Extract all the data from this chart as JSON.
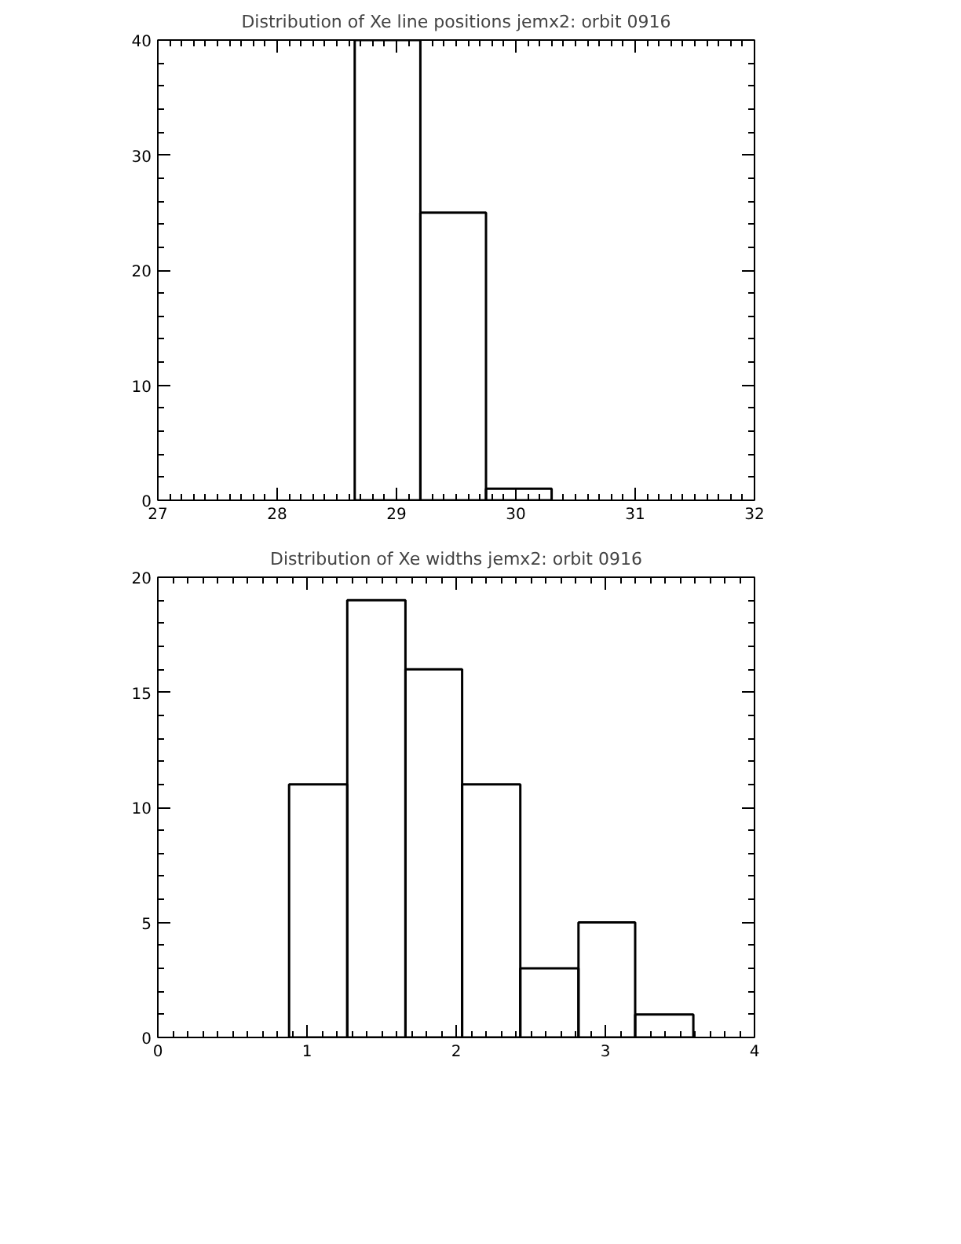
{
  "chart_data": [
    {
      "type": "histogram",
      "title": "Distribution of Xe line positions jemx2: orbit 0916",
      "bins": [
        28.65,
        29.2,
        29.75,
        30.3
      ],
      "values": [
        40,
        25,
        1
      ],
      "color": "#000000",
      "xlim": [
        27,
        32
      ],
      "xticks": [
        27,
        28,
        29,
        30,
        31,
        32
      ],
      "ylim": [
        0,
        40
      ],
      "yticks": [
        0,
        10,
        20,
        30,
        40
      ],
      "grid": false
    },
    {
      "type": "histogram",
      "title": "Distribution of Xe widths jemx2: orbit 0916",
      "bins": [
        0.88,
        1.27,
        1.66,
        2.04,
        2.43,
        2.82,
        3.2,
        3.59
      ],
      "values": [
        11,
        19,
        16,
        11,
        3,
        5,
        1
      ],
      "color": "#000000",
      "xlim": [
        0,
        4
      ],
      "xticks": [
        0,
        1,
        2,
        3,
        4
      ],
      "ylim": [
        0,
        20
      ],
      "yticks": [
        0,
        5,
        10,
        15,
        20
      ],
      "grid": false
    }
  ]
}
